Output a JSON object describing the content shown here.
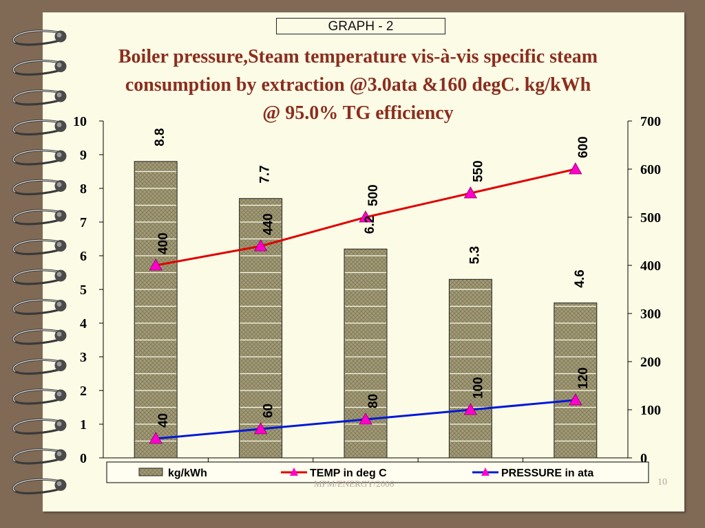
{
  "graph_label": "GRAPH - 2",
  "title_lines": [
    "Boiler pressure,Steam temperature vis-à-vis specific steam",
    "consumption by extraction @3.0ata &160 degC. kg/kWh",
    "@ 95.0% TG efficiency"
  ],
  "footer": "MPM/ENERGY/2006",
  "page_number": "10",
  "colors": {
    "title": "#8b2e1e",
    "bar_fill": "#9c9570",
    "temp_line": "#e00000",
    "pressure_line": "#0018d8",
    "marker": "#ff00cc"
  },
  "chart_data": {
    "type": "bar",
    "categories": [
      "",
      "",
      "",
      "",
      ""
    ],
    "series": [
      {
        "name": "kg/kWh",
        "type": "bar",
        "axis": "left",
        "values": [
          8.8,
          7.7,
          6.2,
          5.3,
          4.6
        ]
      },
      {
        "name": "TEMP in deg C",
        "type": "line",
        "axis": "right",
        "values": [
          400,
          440,
          500,
          550,
          600
        ]
      },
      {
        "name": "PRESSURE in ata",
        "type": "line",
        "axis": "right",
        "values": [
          40,
          60,
          80,
          100,
          120
        ]
      }
    ],
    "left_axis": {
      "min": 0,
      "max": 10,
      "ticks": [
        "0",
        "1",
        "2",
        "3",
        "4",
        "5",
        "6",
        "7",
        "8",
        "9",
        "10"
      ]
    },
    "right_axis": {
      "min": 0,
      "max": 700,
      "ticks": [
        "0",
        "100",
        "200",
        "300",
        "400",
        "500",
        "600",
        "700"
      ]
    },
    "grid": false,
    "legend_position": "bottom"
  }
}
